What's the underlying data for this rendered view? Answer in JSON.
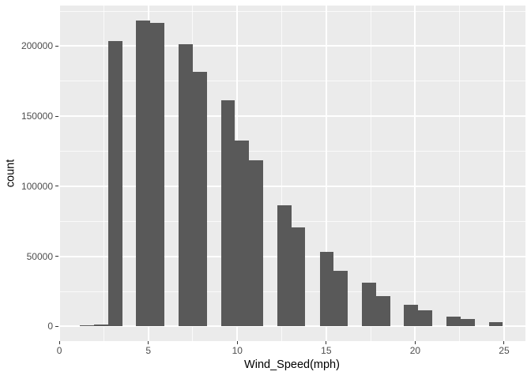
{
  "figure": {
    "background": "#FFFFFF",
    "panel_background": "#EBEBEB",
    "grid_color": "#FFFFFF",
    "bar_color": "#595959",
    "tick_label_color": "#4D4D4D",
    "axis_title_color": "#000000",
    "tick_mark_color": "#333333"
  },
  "chart_data": {
    "type": "bar",
    "subtype": "histogram",
    "title": "",
    "xlabel": "Wind_Speed(mph)",
    "ylabel": "count",
    "legend": "none",
    "grid": "on",
    "x_range": [
      -0.05,
      26.2
    ],
    "y_range": [
      -10500,
      229000
    ],
    "x_major_ticks": [
      0,
      5,
      10,
      15,
      20,
      25
    ],
    "x_tick_labels": [
      "0",
      "5",
      "10",
      "15",
      "20",
      "25"
    ],
    "x_minor_ticks": [
      2.5,
      7.5,
      12.5,
      17.5,
      22.5
    ],
    "y_major_ticks": [
      0,
      50000,
      100000,
      150000,
      200000
    ],
    "y_tick_labels": [
      "0",
      "50000",
      "100000",
      "150000",
      "200000"
    ],
    "y_minor_ticks": [
      25000,
      75000,
      125000,
      175000,
      225000
    ],
    "binwidth": 0.79,
    "bins": [
      {
        "x0": 1.15,
        "x1": 1.95,
        "count": 800
      },
      {
        "x0": 1.95,
        "x1": 2.74,
        "count": 1400
      },
      {
        "x0": 2.74,
        "x1": 3.53,
        "count": 203900
      },
      {
        "x0": 4.32,
        "x1": 5.12,
        "count": 218100
      },
      {
        "x0": 5.12,
        "x1": 5.91,
        "count": 216800
      },
      {
        "x0": 6.7,
        "x1": 7.49,
        "count": 201500
      },
      {
        "x0": 7.49,
        "x1": 8.29,
        "count": 181800
      },
      {
        "x0": 9.08,
        "x1": 9.87,
        "count": 161100
      },
      {
        "x0": 9.87,
        "x1": 10.66,
        "count": 132500
      },
      {
        "x0": 10.66,
        "x1": 11.46,
        "count": 118400
      },
      {
        "x0": 12.25,
        "x1": 13.04,
        "count": 86500
      },
      {
        "x0": 13.04,
        "x1": 13.83,
        "count": 70800
      },
      {
        "x0": 14.63,
        "x1": 15.42,
        "count": 53200
      },
      {
        "x0": 15.42,
        "x1": 16.21,
        "count": 39800
      },
      {
        "x0": 17.0,
        "x1": 17.8,
        "count": 31000
      },
      {
        "x0": 17.8,
        "x1": 18.59,
        "count": 21600
      },
      {
        "x0": 19.38,
        "x1": 20.17,
        "count": 15600
      },
      {
        "x0": 20.17,
        "x1": 20.97,
        "count": 11300
      },
      {
        "x0": 21.76,
        "x1": 22.55,
        "count": 6900
      },
      {
        "x0": 22.55,
        "x1": 23.34,
        "count": 5200
      },
      {
        "x0": 24.14,
        "x1": 24.93,
        "count": 3300
      }
    ]
  }
}
